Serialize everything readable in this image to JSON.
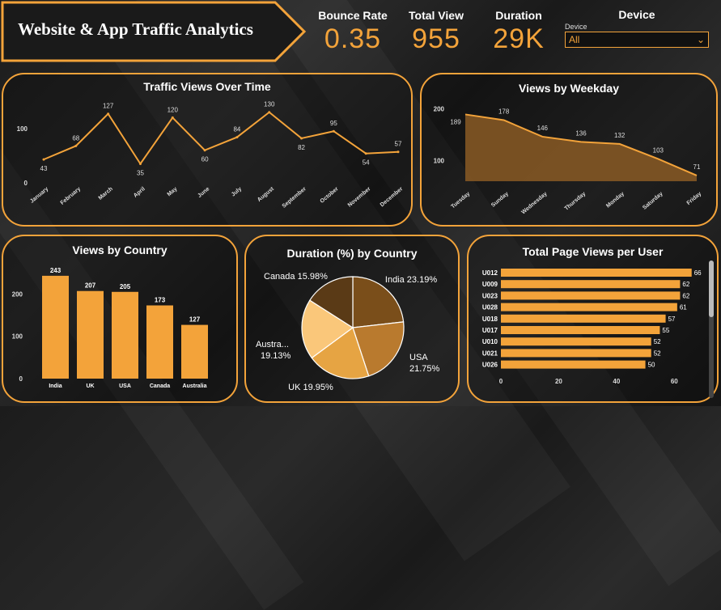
{
  "header": {
    "title": "Website & App Traffic Analytics"
  },
  "kpis": [
    {
      "label": "Bounce Rate",
      "value": "0.35"
    },
    {
      "label": "Total View",
      "value": "955"
    },
    {
      "label": "Duration",
      "value": "29K"
    }
  ],
  "device": {
    "header": "Device",
    "caption": "Device",
    "selected": "All"
  },
  "colors": {
    "accent": "#f3a33a",
    "accent_fill": "#8a5a24"
  },
  "panels": {
    "traffic_over_time": "Traffic Views Over Time",
    "weekday": "Views by Weekday",
    "country": "Views by Country",
    "duration": "Duration (%) by Country",
    "per_user": "Total Page Views per User"
  },
  "chart_data": [
    {
      "id": "traffic_over_time",
      "type": "line",
      "title": "Traffic Views Over Time",
      "categories": [
        "January",
        "February",
        "March",
        "April",
        "May",
        "June",
        "July",
        "August",
        "September",
        "October",
        "November",
        "December"
      ],
      "values": [
        43,
        68,
        127,
        35,
        120,
        60,
        84,
        130,
        82,
        95,
        54,
        57
      ],
      "yticks": [
        0,
        100
      ],
      "ylim": [
        0,
        140
      ]
    },
    {
      "id": "weekday",
      "type": "area",
      "title": "Views by Weekday",
      "categories": [
        "Tuesday",
        "Sunday",
        "Wednesday",
        "Thursday",
        "Monday",
        "Saturday",
        "Friday"
      ],
      "values": [
        189,
        178,
        146,
        136,
        132,
        103,
        71
      ],
      "yticks": [
        100,
        200
      ],
      "ylim": [
        60,
        210
      ]
    },
    {
      "id": "country",
      "type": "bar",
      "title": "Views by Country",
      "categories": [
        "India",
        "UK",
        "USA",
        "Canada",
        "Australia"
      ],
      "values": [
        243,
        207,
        205,
        173,
        127
      ],
      "yticks": [
        0,
        100,
        200
      ],
      "ylim": [
        0,
        260
      ]
    },
    {
      "id": "duration",
      "type": "pie",
      "title": "Duration (%) by Country",
      "slices": [
        {
          "label": "India",
          "value": 23.19,
          "display": "India 23.19%",
          "color": "#7a4e1a"
        },
        {
          "label": "USA",
          "value": 21.75,
          "display": "USA 21.75%",
          "color": "#b97a2e"
        },
        {
          "label": "UK",
          "value": 19.95,
          "display": "UK 19.95%",
          "color": "#e6a443"
        },
        {
          "label": "Australia",
          "value": 19.13,
          "display": "Austra... 19.13%",
          "color": "#fac77a"
        },
        {
          "label": "Canada",
          "value": 15.98,
          "display": "Canada 15.98%",
          "color": "#5a3a16"
        }
      ]
    },
    {
      "id": "per_user",
      "type": "bar",
      "orientation": "horizontal",
      "title": "Total Page Views per User",
      "categories": [
        "U012",
        "U009",
        "U023",
        "U028",
        "U018",
        "U017",
        "U010",
        "U021",
        "U026"
      ],
      "values": [
        66,
        62,
        62,
        61,
        57,
        55,
        52,
        52,
        50
      ],
      "xticks": [
        0,
        20,
        40,
        60
      ],
      "xlim": [
        0,
        70
      ]
    }
  ]
}
